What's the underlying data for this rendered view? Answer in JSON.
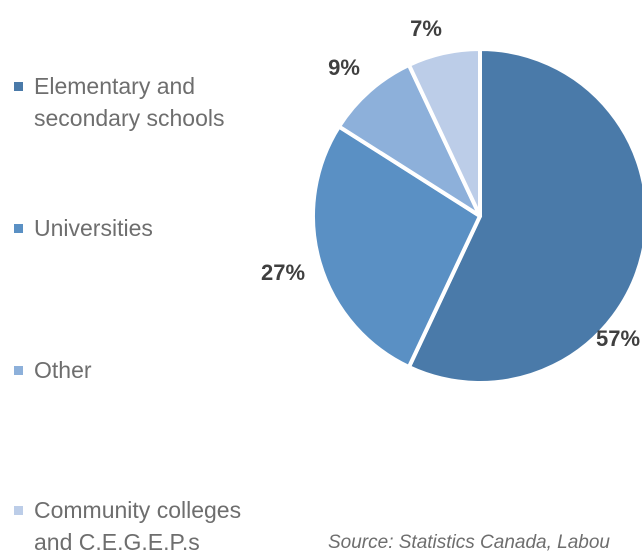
{
  "chart_data": {
    "type": "pie",
    "categories": [
      "Elementary and secondary schools",
      "Universities",
      "Other",
      "Community colleges and C.E.G.E.P.s"
    ],
    "values": [
      57,
      27,
      9,
      7
    ],
    "data_labels": [
      "57%",
      "27%",
      "9%",
      "7%"
    ],
    "colors": [
      "#4a7aa9",
      "#5a90c4",
      "#8db0da",
      "#bccde8"
    ],
    "legend_position": "left",
    "source": "Source: Statistics Canada, Labou"
  }
}
